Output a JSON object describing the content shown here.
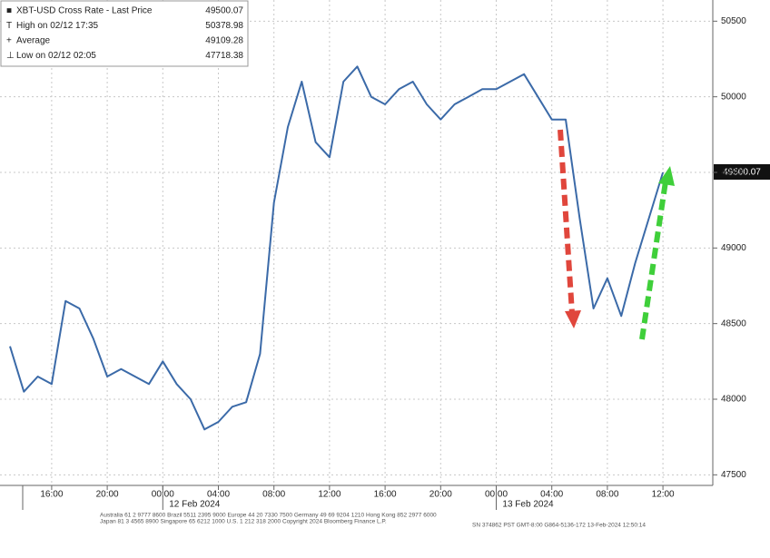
{
  "chart_data": {
    "type": "line",
    "legend": [
      {
        "label": "XBT-USD Cross Rate - Last Price",
        "value": 49500.07
      },
      {
        "label": "High on 02/12 17:35",
        "value": 50378.98
      },
      {
        "label": "Average",
        "value": 49109.28
      },
      {
        "label": "Low on 02/12 02:05",
        "value": 47718.38
      }
    ],
    "categories": [
      null,
      null,
      null,
      "16:00",
      null,
      null,
      null,
      "20:00",
      null,
      null,
      null,
      "00:00",
      null,
      null,
      null,
      "04:00",
      null,
      null,
      null,
      "08:00",
      null,
      null,
      null,
      "12:00",
      null,
      null,
      null,
      "16:00",
      null,
      null,
      null,
      "20:00",
      null,
      null,
      null,
      "00:00",
      null,
      null,
      null,
      "04:00",
      null,
      null,
      null,
      "08:00",
      null,
      null,
      null,
      "12:00"
    ],
    "date_labels": [
      "12 Feb 2024",
      "13 Feb 2024"
    ],
    "series": [
      {
        "name": "XBT-USD Cross Rate - Last Price",
        "color": "#3b6aa8",
        "values": [
          48350,
          48050,
          48150,
          48100,
          48650,
          48600,
          48400,
          48150,
          48200,
          48150,
          48100,
          48250,
          48100,
          48000,
          47800,
          47850,
          47950,
          47980,
          48300,
          49300,
          49800,
          50100,
          49700,
          49600,
          50100,
          50200,
          50000,
          49950,
          50050,
          50100,
          49950,
          49850,
          49950,
          50000,
          50050,
          50050,
          50100,
          50150,
          50000,
          49850,
          49850,
          49200,
          48600,
          48800,
          48550,
          48900,
          49200,
          49500.07
        ]
      }
    ],
    "ylim": [
      47430,
      50640
    ],
    "yticks": [
      47500,
      48000,
      48500,
      49000,
      49500,
      50000,
      50500
    ],
    "grid": true,
    "footer": [
      "Australia 61 2 9777 8600 Brazil 5511 2395 9000 Europe 44 20 7330 7500 Germany 49 69 9204 1210 Hong Kong 852 2977 6000",
      "Japan 81 3 4565 8900 Singapore 65 6212 1000 U.S. 1 212 318 2000 Copyright 2024 Bloomberg Finance L.P.",
      "SN 374862 PST GMT-8:00 G864-5136-172 13-Feb-2024 12:50:14"
    ]
  }
}
